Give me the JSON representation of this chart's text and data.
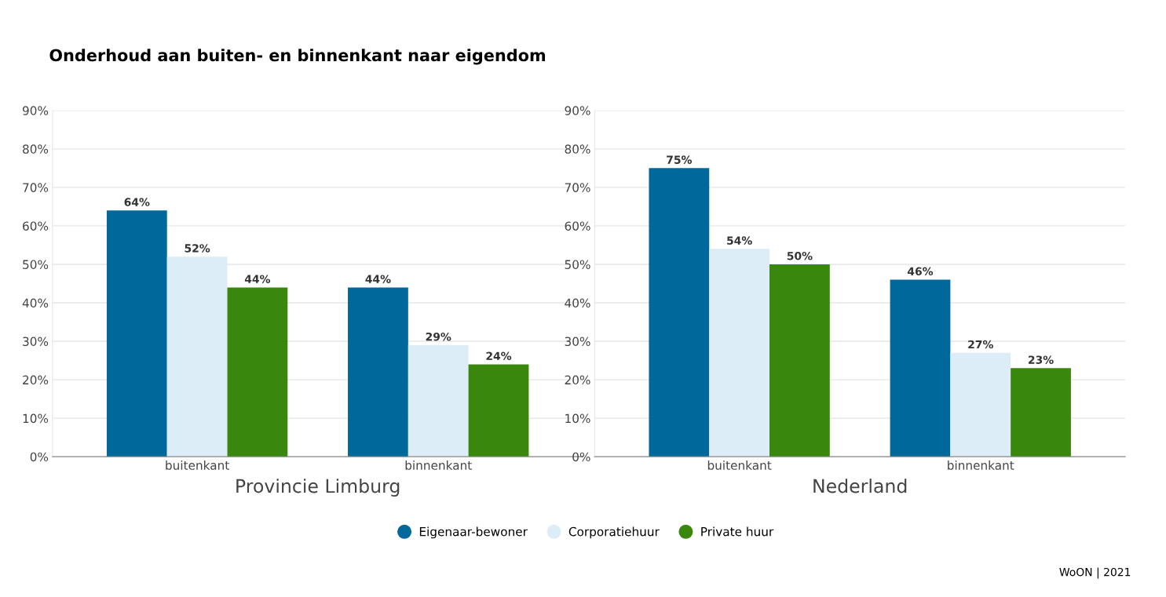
{
  "chart_data": [
    {
      "type": "bar",
      "title": "Onderhoud aan buiten- en binnenkant naar eigendom",
      "xlabel": "Provincie Limburg",
      "categories": [
        "buitenkant",
        "binnenkant"
      ],
      "series": [
        {
          "name": "Eigenaar-bewoner",
          "color": "#01689b",
          "values": [
            64,
            44
          ],
          "value_labels": [
            "64%",
            "44%"
          ]
        },
        {
          "name": "Corporatiehuur",
          "color": "#ddedf8",
          "values": [
            52,
            29
          ],
          "value_labels": [
            "52%",
            "29%"
          ]
        },
        {
          "name": "Private huur",
          "color": "#39870c",
          "values": [
            44,
            24
          ],
          "value_labels": [
            "44%",
            "24%"
          ]
        }
      ],
      "ylim": [
        0,
        90
      ],
      "yticks": [
        {
          "value": 0,
          "label": "0%"
        },
        {
          "value": 10,
          "label": "10%"
        },
        {
          "value": 20,
          "label": "20%"
        },
        {
          "value": 30,
          "label": "30%"
        },
        {
          "value": 40,
          "label": "40%"
        },
        {
          "value": 50,
          "label": "50%"
        },
        {
          "value": 60,
          "label": "60%"
        },
        {
          "value": 70,
          "label": "70%"
        },
        {
          "value": 80,
          "label": "80%"
        },
        {
          "value": 90,
          "label": "90%"
        }
      ],
      "grid": "y",
      "legend": "bottom"
    },
    {
      "type": "bar",
      "xlabel": "Nederland",
      "categories": [
        "buitenkant",
        "binnenkant"
      ],
      "series": [
        {
          "color": "#01689b",
          "values": [
            75,
            46
          ],
          "value_labels": [
            "75%",
            "46%"
          ]
        },
        {
          "color": "#ddedf8",
          "values": [
            54,
            27
          ],
          "value_labels": [
            "54%",
            "27%"
          ]
        },
        {
          "color": "#39870c",
          "values": [
            50,
            23
          ],
          "value_labels": [
            "50%",
            "23%"
          ]
        }
      ],
      "ylim": [
        0,
        90
      ],
      "yticks": [
        {
          "value": 0,
          "label": "0%"
        },
        {
          "value": 10,
          "label": "10%"
        },
        {
          "value": 20,
          "label": "20%"
        },
        {
          "value": 30,
          "label": "30%"
        },
        {
          "value": 40,
          "label": "40%"
        },
        {
          "value": 50,
          "label": "50%"
        },
        {
          "value": 60,
          "label": "60%"
        },
        {
          "value": 70,
          "label": "70%"
        },
        {
          "value": 80,
          "label": "80%"
        },
        {
          "value": 90,
          "label": "90%"
        }
      ],
      "grid": "y",
      "annotations": [
        "WoON | 2021"
      ]
    }
  ]
}
